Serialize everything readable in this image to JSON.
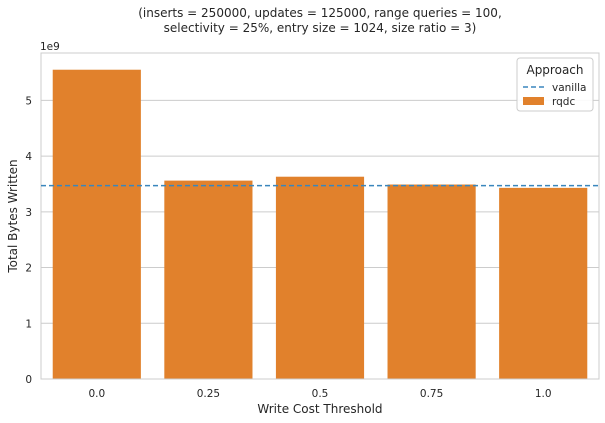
{
  "chart_data": {
    "type": "bar",
    "title_line1": "(inserts = 250000, updates = 125000, range queries = 100,",
    "title_line2": "selectivity = 25%, entry size = 1024, size ratio = 3)",
    "xlabel": "Write Cost Threshold",
    "ylabel": "Total Bytes Written",
    "y_scale_label": "1e9",
    "categories": [
      "0.0",
      "0.25",
      "0.5",
      "0.75",
      "1.0"
    ],
    "y_ticks": [
      "0",
      "1",
      "2",
      "3",
      "4",
      "5"
    ],
    "ylim": [
      0,
      5.85
    ],
    "series": [
      {
        "name": "rqdc",
        "values": [
          5.55,
          3.56,
          3.63,
          3.49,
          3.43
        ],
        "color": "#e1812c"
      }
    ],
    "reference_line": {
      "name": "vanilla",
      "value": 3.47,
      "color": "#3a86bd",
      "style": "dashed"
    },
    "legend": {
      "title": "Approach",
      "placement": "top-right",
      "entries": [
        "vanilla",
        "rqdc"
      ]
    },
    "grid": "horizontal"
  }
}
